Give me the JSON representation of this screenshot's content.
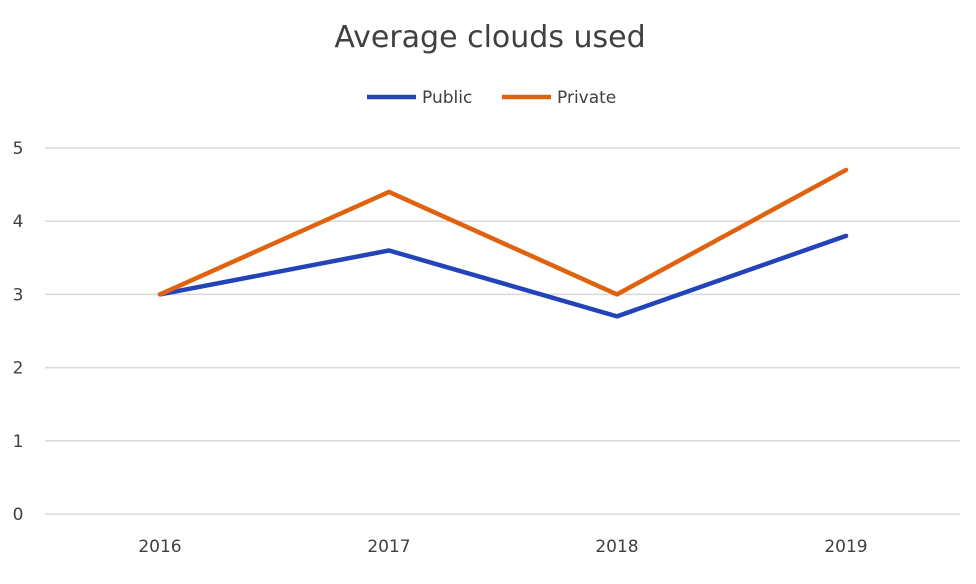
{
  "chart_data": {
    "type": "line",
    "title": "Average clouds used",
    "xlabel": "",
    "ylabel": "",
    "categories": [
      "2016",
      "2017",
      "2018",
      "2019"
    ],
    "ylim": [
      0,
      5
    ],
    "yticks": [
      "0",
      "1",
      "2",
      "3",
      "4",
      "5"
    ],
    "grid": true,
    "legend_position": "top",
    "series": [
      {
        "name": "Public",
        "color": "#2244b8",
        "values": [
          3.0,
          3.6,
          2.7,
          3.8
        ]
      },
      {
        "name": "Private",
        "color": "#e0620f",
        "values": [
          3.0,
          4.4,
          3.0,
          4.7
        ]
      }
    ]
  }
}
